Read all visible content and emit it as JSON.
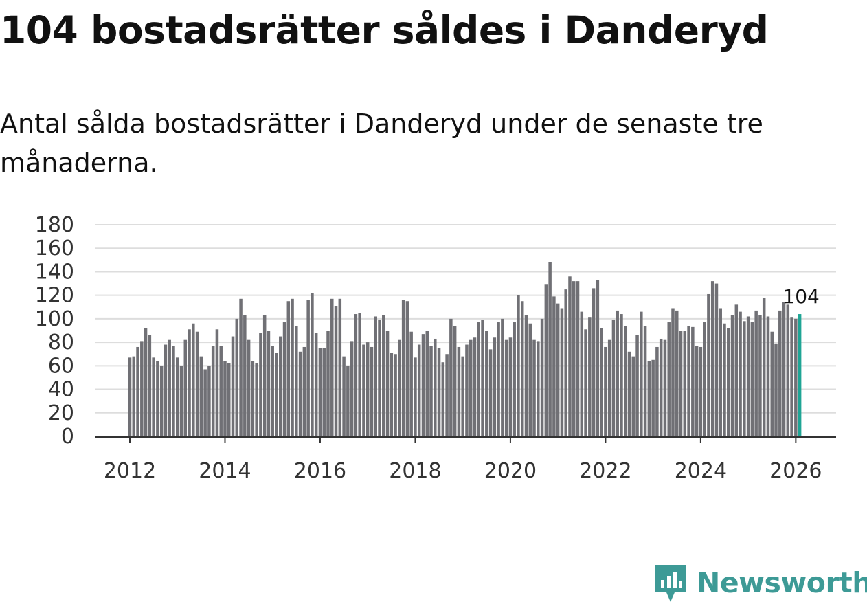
{
  "title": "104 bostadsrätter såldes i Danderyd",
  "subtitle": "Antal sålda bostadsrätter i Danderyd under de senaste tre månaderna.",
  "brand": {
    "name": "Newsworthy",
    "icon": "newsworthy-logo-icon",
    "color": "#3d9a96"
  },
  "colors": {
    "bar": "#707075",
    "highlight": "#1fa595",
    "grid": "#dddddd",
    "axis": "#333333"
  },
  "chart_data": {
    "type": "bar",
    "title": "Antal sålda bostadsrätter i Danderyd under de senaste tre månaderna.",
    "xlabel": "",
    "ylabel": "",
    "ylim": [
      0,
      180
    ],
    "yticks": [
      0,
      20,
      40,
      60,
      80,
      100,
      120,
      140,
      160,
      180
    ],
    "xticks": [
      {
        "label": "2012",
        "month": 0
      },
      {
        "label": "2014",
        "month": 24
      },
      {
        "label": "2016",
        "month": 48
      },
      {
        "label": "2018",
        "month": 72
      },
      {
        "label": "2020",
        "month": 96
      },
      {
        "label": "2022",
        "month": 120
      },
      {
        "label": "2024",
        "month": 144
      },
      {
        "label": "2026",
        "month": 168
      }
    ],
    "start": "2012-01",
    "end": "2026-02",
    "frequency": "monthly (rolling three-month total)",
    "grid": true,
    "values": [
      67,
      68,
      76,
      81,
      92,
      86,
      67,
      64,
      60,
      78,
      82,
      77,
      67,
      60,
      82,
      91,
      96,
      89,
      68,
      57,
      60,
      77,
      91,
      77,
      64,
      62,
      85,
      100,
      117,
      103,
      82,
      64,
      62,
      88,
      103,
      90,
      77,
      71,
      85,
      97,
      115,
      117,
      94,
      72,
      76,
      116,
      122,
      88,
      75,
      75,
      90,
      117,
      111,
      117,
      68,
      60,
      81,
      104,
      105,
      78,
      80,
      76,
      102,
      99,
      103,
      90,
      71,
      70,
      82,
      116,
      115,
      89,
      67,
      78,
      87,
      90,
      77,
      83,
      75,
      63,
      70,
      100,
      94,
      76,
      68,
      78,
      82,
      84,
      97,
      99,
      90,
      74,
      84,
      97,
      100,
      82,
      84,
      97,
      120,
      115,
      103,
      96,
      82,
      81,
      100,
      129,
      148,
      119,
      113,
      109,
      125,
      136,
      132,
      132,
      106,
      91,
      101,
      126,
      133,
      92,
      76,
      82,
      99,
      107,
      104,
      94,
      72,
      68,
      86,
      106,
      94,
      64,
      65,
      76,
      83,
      82,
      97,
      109,
      107,
      90,
      90,
      94,
      93,
      77,
      76,
      97,
      121,
      132,
      130,
      109,
      96,
      92,
      103,
      112,
      106,
      98,
      102,
      97,
      107,
      103,
      118,
      102,
      89,
      79,
      107,
      114,
      112,
      101,
      100,
      104
    ],
    "highlight_label": "104"
  }
}
